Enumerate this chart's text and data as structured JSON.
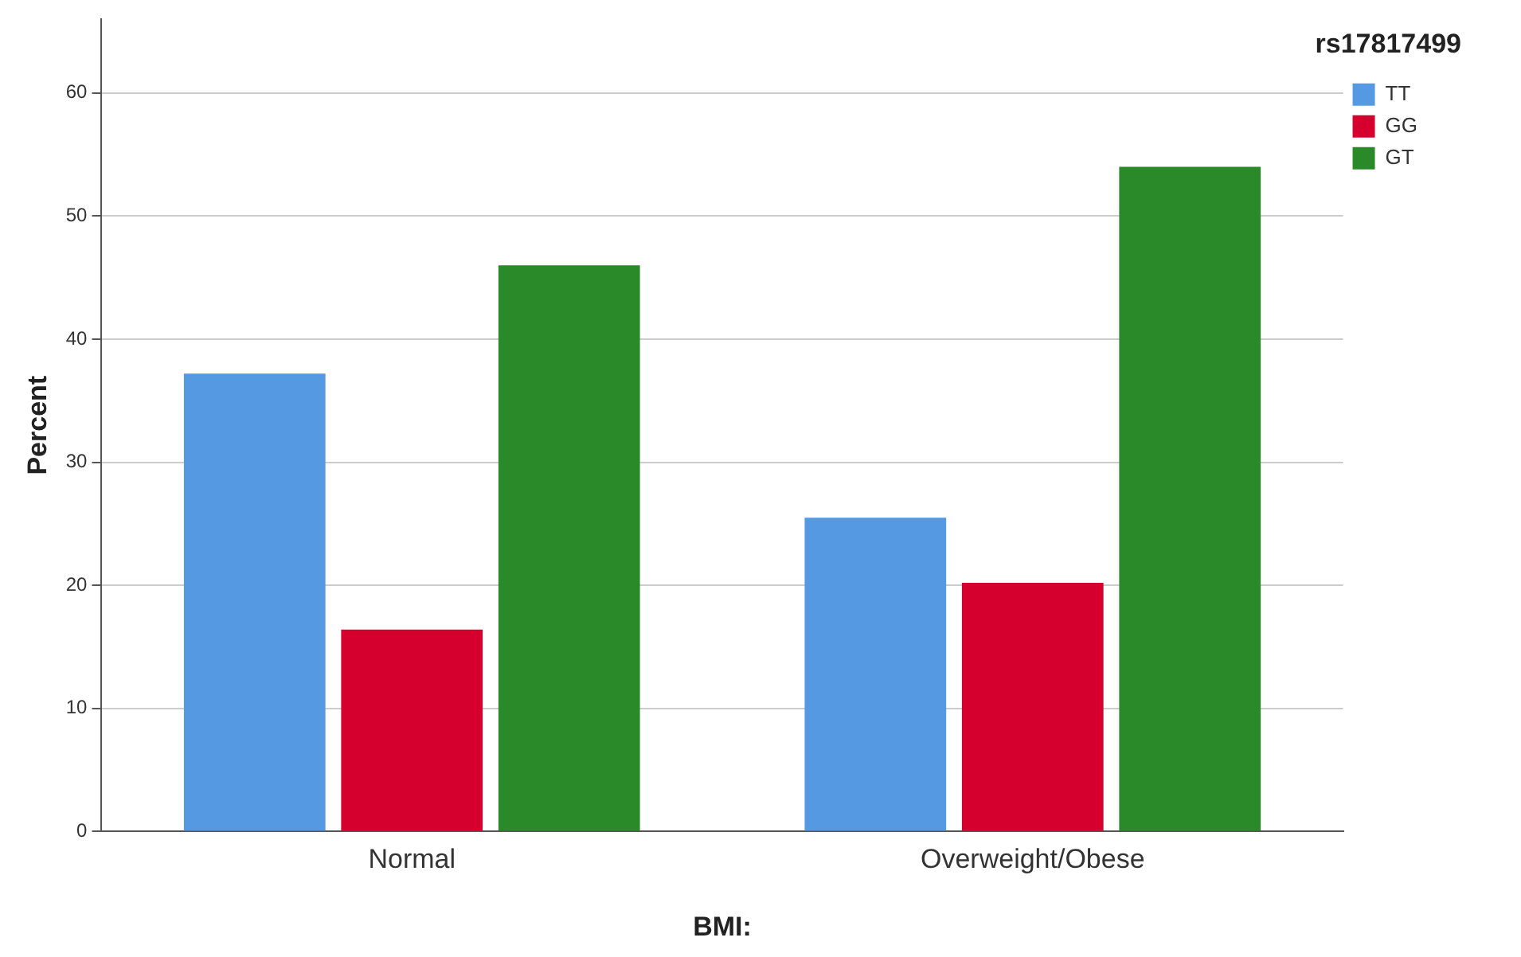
{
  "chart_data": {
    "type": "bar",
    "xlabel": "BMI:",
    "ylabel": "Percent",
    "legend_title": "rs17817499",
    "categories": [
      "Normal",
      "Overweight/Obese"
    ],
    "series": [
      {
        "name": "TT",
        "color": "#5599e3",
        "values": [
          37.2,
          25.5
        ]
      },
      {
        "name": "GG",
        "color": "#d5002e",
        "values": [
          16.4,
          20.2
        ]
      },
      {
        "name": "GT",
        "color": "#2a8a2a",
        "values": [
          46.0,
          54.0
        ]
      }
    ],
    "ylim": [
      0,
      66
    ],
    "yticks": [
      0,
      10,
      20,
      30,
      40,
      50,
      60
    ],
    "grid": "y",
    "legend": "top right"
  }
}
